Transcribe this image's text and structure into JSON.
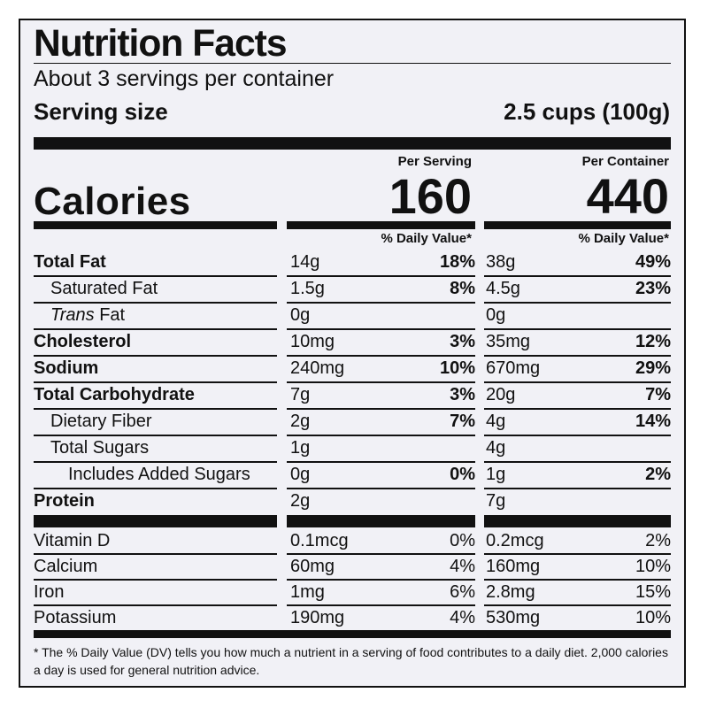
{
  "title": "Nutrition Facts",
  "servings_per_container": "About 3 servings per container",
  "serving_size": {
    "label": "Serving size",
    "value": "2.5 cups (100g)"
  },
  "columns": {
    "per_serving": "Per Serving",
    "per_container": "Per Container"
  },
  "calories": {
    "label": "Calories",
    "per_serving": "160",
    "per_container": "440"
  },
  "daily_value_header": "% Daily Value*",
  "nutrients": [
    {
      "name": "Total Fat",
      "serving_amount": "14g",
      "serving_dv": "18%",
      "container_amount": "38g",
      "container_dv": "49%"
    },
    {
      "name": "Saturated Fat",
      "serving_amount": "1.5g",
      "serving_dv": "8%",
      "container_amount": "4.5g",
      "container_dv": "23%"
    },
    {
      "name_italic": "Trans",
      "name": " Fat",
      "serving_amount": "0g",
      "serving_dv": "",
      "container_amount": "0g",
      "container_dv": ""
    },
    {
      "name": "Cholesterol",
      "serving_amount": "10mg",
      "serving_dv": "3%",
      "container_amount": "35mg",
      "container_dv": "12%"
    },
    {
      "name": "Sodium",
      "serving_amount": "240mg",
      "serving_dv": "10%",
      "container_amount": "670mg",
      "container_dv": "29%"
    },
    {
      "name": "Total Carbohydrate",
      "serving_amount": "7g",
      "serving_dv": "3%",
      "container_amount": "20g",
      "container_dv": "7%"
    },
    {
      "name": "Dietary Fiber",
      "serving_amount": "2g",
      "serving_dv": "7%",
      "container_amount": "4g",
      "container_dv": "14%"
    },
    {
      "name": "Total Sugars",
      "serving_amount": "1g",
      "serving_dv": "",
      "container_amount": "4g",
      "container_dv": ""
    },
    {
      "name": "Includes Added Sugars",
      "serving_amount": "0g",
      "serving_dv": "0%",
      "container_amount": "1g",
      "container_dv": "2%"
    },
    {
      "name": "Protein",
      "serving_amount": "2g",
      "serving_dv": "",
      "container_amount": "7g",
      "container_dv": ""
    }
  ],
  "micronutrients": [
    {
      "name": "Vitamin D",
      "serving_amount": "0.1mcg",
      "serving_dv": "0%",
      "container_amount": "0.2mcg",
      "container_dv": "2%"
    },
    {
      "name": "Calcium",
      "serving_amount": "60mg",
      "serving_dv": "4%",
      "container_amount": "160mg",
      "container_dv": "10%"
    },
    {
      "name": "Iron",
      "serving_amount": "1mg",
      "serving_dv": "6%",
      "container_amount": "2.8mg",
      "container_dv": "15%"
    },
    {
      "name": "Potassium",
      "serving_amount": "190mg",
      "serving_dv": "4%",
      "container_amount": "530mg",
      "container_dv": "10%"
    }
  ],
  "footnote": "* The % Daily Value (DV) tells you how much a nutrient in a serving of food contributes to a daily diet. 2,000 calories a day is used for general nutrition advice."
}
